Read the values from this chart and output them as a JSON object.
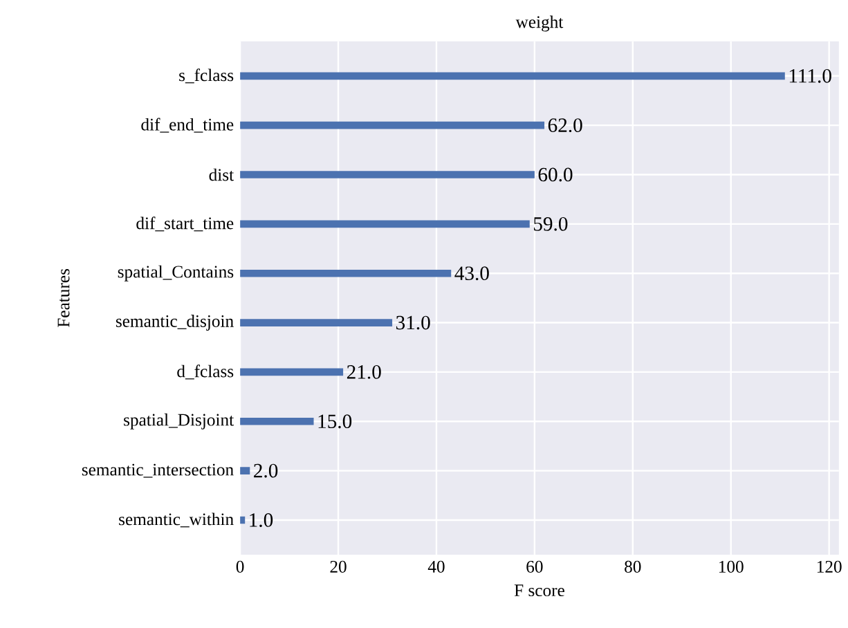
{
  "chart_data": {
    "type": "bar",
    "orientation": "horizontal",
    "title": "weight",
    "xlabel": "F score",
    "ylabel": "Features",
    "categories": [
      "s_fclass",
      "dif_end_time",
      "dist",
      "dif_start_time",
      "spatial_Contains",
      "semantic_disjoin",
      "d_fclass",
      "spatial_Disjoint",
      "semantic_intersection",
      "semantic_within"
    ],
    "values": [
      111,
      62,
      60,
      59,
      43,
      31,
      21,
      15,
      2,
      1
    ],
    "value_labels": [
      "111.0",
      "62.0",
      "60.0",
      "59.0",
      "43.0",
      "31.0",
      "21.0",
      "15.0",
      "2.0",
      "1.0"
    ],
    "color": "#4c72b0",
    "xlim": [
      0,
      122
    ],
    "xticks": [
      0,
      20,
      40,
      60,
      80,
      100,
      120
    ],
    "grid": true
  }
}
